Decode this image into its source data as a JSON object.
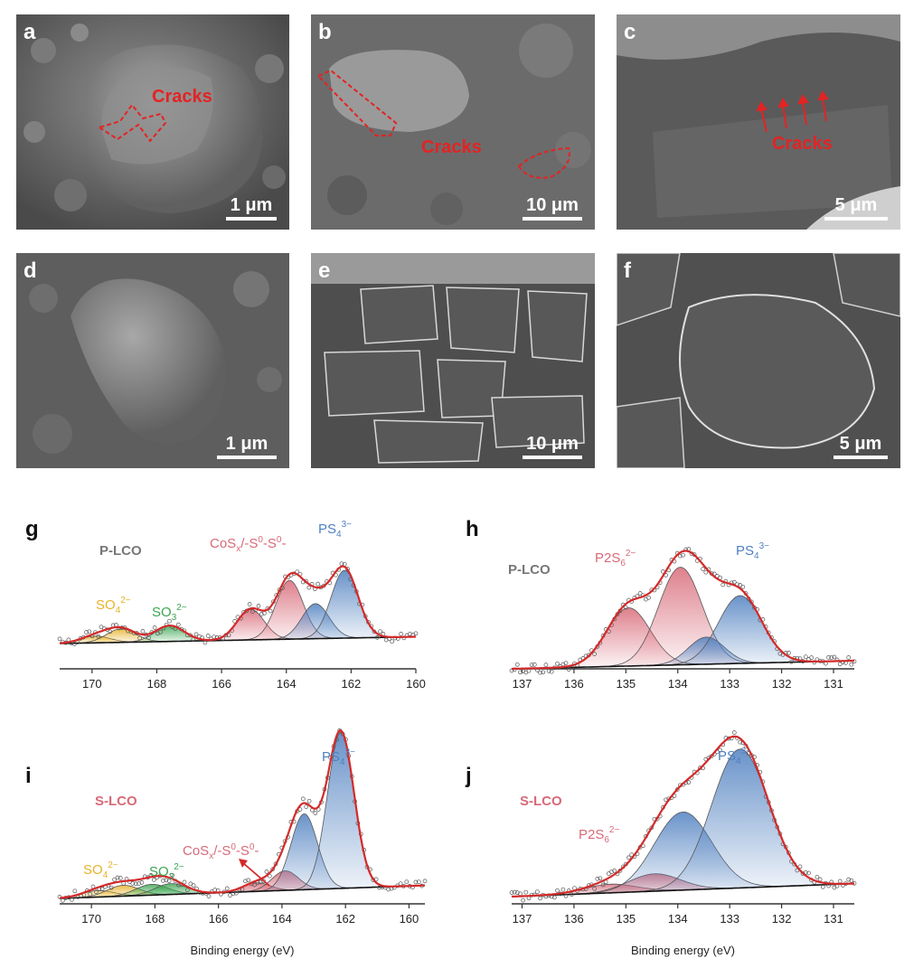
{
  "figure": {
    "panels": [
      {
        "id": "a",
        "label": "a",
        "scale": "1 μm",
        "annotation": "Cracks"
      },
      {
        "id": "b",
        "label": "b",
        "scale": "10 μm",
        "annotation": "Cracks"
      },
      {
        "id": "c",
        "label": "c",
        "scale": "5 μm",
        "annotation": "Cracks"
      },
      {
        "id": "d",
        "label": "d",
        "scale": "1 μm"
      },
      {
        "id": "e",
        "label": "e",
        "scale": "10 μm"
      },
      {
        "id": "f",
        "label": "f",
        "scale": "5 μm"
      }
    ],
    "colors": {
      "envelope": "#d42a2a",
      "data_points": "#555555",
      "baseline": "#111111",
      "PS4": "#4f80c0",
      "CoSx": "#d86a78",
      "SO4": "#e8b22a",
      "SO3": "#3aa550",
      "P2S6": "#d86a78"
    }
  },
  "chart_data": [
    {
      "id": "g",
      "panel_label": "g",
      "type": "line",
      "sample": "P-LCO",
      "xlabel": "",
      "xlim": [
        171,
        160
      ],
      "x_reversed": true,
      "xticks": [
        170,
        168,
        166,
        164,
        162,
        160
      ],
      "peaks": [
        {
          "label": "SO4",
          "sup": "2−",
          "color": "SO4",
          "components": [
            {
              "center": 169.9,
              "height": 0.06,
              "width": 0.45
            },
            {
              "center": 169.1,
              "height": 0.12,
              "width": 0.45
            }
          ]
        },
        {
          "label": "SO3",
          "sup": "2−",
          "color": "SO3",
          "components": [
            {
              "center": 167.6,
              "height": 0.14,
              "width": 0.45
            }
          ]
        },
        {
          "label": "CoSx/-S0-S0-",
          "color": "CoSx",
          "components": [
            {
              "center": 165.1,
              "height": 0.27,
              "width": 0.42
            },
            {
              "center": 163.9,
              "height": 0.52,
              "width": 0.42
            }
          ]
        },
        {
          "label": "PS4",
          "sup": "3−",
          "color": "PS4",
          "components": [
            {
              "center": 163.1,
              "height": 0.31,
              "width": 0.42
            },
            {
              "center": 162.2,
              "height": 0.6,
              "width": 0.42
            }
          ]
        }
      ],
      "annotations": [
        "P-LCO",
        "SO",
        "4",
        "2−",
        "SO",
        "3",
        "2−",
        "CoS",
        "x",
        "/-S",
        "0",
        "-S",
        "0",
        "-",
        "PS",
        "4",
        "3−"
      ]
    },
    {
      "id": "h",
      "panel_label": "h",
      "type": "line",
      "sample": "P-LCO",
      "xlabel": "",
      "xlim": [
        137.2,
        130.6
      ],
      "x_reversed": true,
      "xticks": [
        137,
        136,
        135,
        134,
        133,
        132,
        131
      ],
      "peaks": [
        {
          "label": "P2S6",
          "sup": "2−",
          "color": "P2S6",
          "components": [
            {
              "center": 134.95,
              "height": 0.43,
              "width": 0.42
            },
            {
              "center": 133.95,
              "height": 0.72,
              "width": 0.42
            }
          ]
        },
        {
          "label": "PS4",
          "sup": "3−",
          "color": "PS4",
          "components": [
            {
              "center": 133.45,
              "height": 0.2,
              "width": 0.35
            },
            {
              "center": 132.8,
              "height": 0.5,
              "width": 0.42
            }
          ]
        }
      ],
      "annotations": [
        "P-LCO",
        "P2S",
        "6",
        "2−",
        "PS",
        "4",
        "3−"
      ]
    },
    {
      "id": "i",
      "panel_label": "i",
      "type": "line",
      "sample": "S-LCO",
      "xlabel": "Binding energy (eV)",
      "xlim": [
        171,
        159.5
      ],
      "x_reversed": true,
      "xticks": [
        170,
        168,
        166,
        164,
        162,
        160
      ],
      "peaks": [
        {
          "label": "SO4",
          "sup": "2−",
          "color": "SO4",
          "components": [
            {
              "center": 169.8,
              "height": 0.03,
              "width": 0.5
            },
            {
              "center": 169.0,
              "height": 0.05,
              "width": 0.5
            }
          ]
        },
        {
          "label": "SO3",
          "sup": "2−",
          "color": "SO3",
          "components": [
            {
              "center": 168.1,
              "height": 0.05,
              "width": 0.5
            },
            {
              "center": 167.5,
              "height": 0.05,
              "width": 0.5
            }
          ]
        },
        {
          "label": "CoSx/-S0-S0-",
          "color": "CoSx",
          "components": [
            {
              "center": 164.8,
              "height": 0.04,
              "width": 0.42
            },
            {
              "center": 163.9,
              "height": 0.09,
              "width": 0.42
            }
          ]
        },
        {
          "label": "PS4",
          "sup": "3−",
          "color": "PS4",
          "components": [
            {
              "center": 163.3,
              "height": 0.35,
              "width": 0.42
            },
            {
              "center": 162.15,
              "height": 0.72,
              "width": 0.42
            }
          ]
        }
      ],
      "annotations": [
        "S-LCO",
        "SO",
        "4",
        "2−",
        "SO",
        "3",
        "2−",
        "CoS",
        "x",
        "/-S",
        "0",
        "-S",
        "0",
        "-",
        "PS",
        "4",
        "3−"
      ]
    },
    {
      "id": "j",
      "panel_label": "j",
      "type": "line",
      "sample": "S-LCO",
      "xlabel": "Binding energy (eV)",
      "xlim": [
        137.2,
        130.6
      ],
      "x_reversed": true,
      "xticks": [
        137,
        136,
        135,
        134,
        133,
        132,
        131
      ],
      "peaks": [
        {
          "label": "P2S6",
          "sup": "2−",
          "color": "P2S6",
          "components": [
            {
              "center": 135.3,
              "height": 0.04,
              "width": 0.5
            },
            {
              "center": 134.45,
              "height": 0.08,
              "width": 0.5
            }
          ]
        },
        {
          "label": "PS4",
          "sup": "3−",
          "color": "PS4",
          "components": [
            {
              "center": 133.9,
              "height": 0.36,
              "width": 0.55
            },
            {
              "center": 132.8,
              "height": 0.64,
              "width": 0.55
            }
          ]
        }
      ],
      "annotations": [
        "S-LCO",
        "P2S",
        "6",
        "2−",
        "PS",
        "4",
        "3−"
      ]
    }
  ]
}
